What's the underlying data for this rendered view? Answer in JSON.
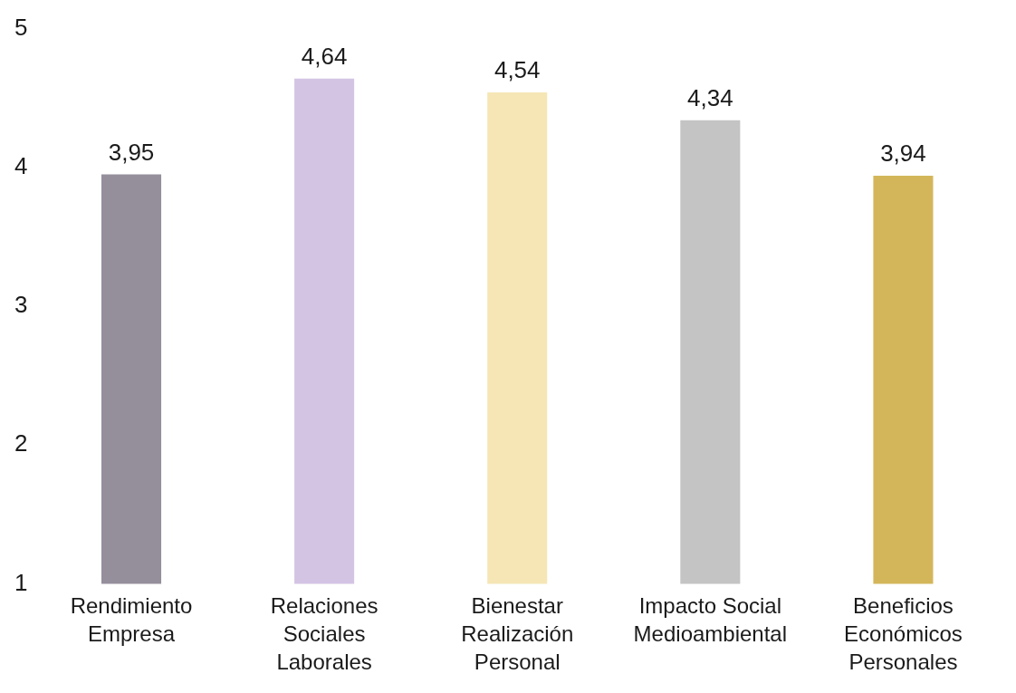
{
  "chart_data": {
    "type": "bar",
    "categories": [
      "Rendimiento Empresa",
      "Relaciones Sociales Laborales",
      "Bienestar Realización Personal",
      "Impacto Social Medioambiental",
      "Beneficios Económicos Personales"
    ],
    "values": [
      3.95,
      4.64,
      4.54,
      4.34,
      3.94
    ],
    "colors": [
      "#958e9b",
      "#d4c4e4",
      "#f6e6b6",
      "#c4c4c4",
      "#d4b65a"
    ],
    "value_labels": [
      "3,95",
      "4,64",
      "4,54",
      "4,34",
      "3,94"
    ],
    "ylim": [
      1,
      5
    ],
    "yticks": [
      1,
      2,
      3,
      4,
      5
    ],
    "grid": false,
    "legend": false
  }
}
